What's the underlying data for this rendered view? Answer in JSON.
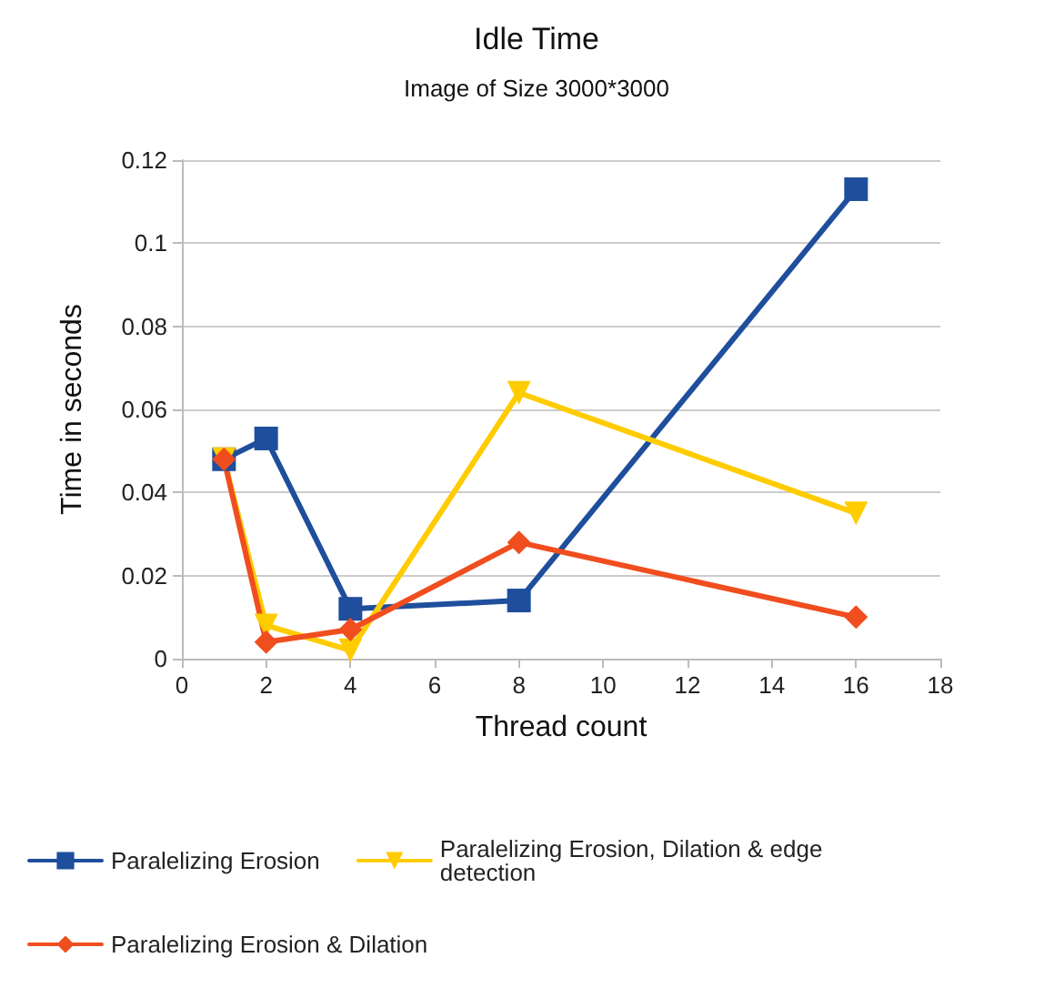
{
  "chart_data": {
    "type": "line",
    "title": "Idle Time",
    "subtitle": "Image of Size 3000*3000",
    "xlabel": "Thread count",
    "ylabel": "Time in seconds",
    "x": [
      1,
      2,
      4,
      8,
      16
    ],
    "series": [
      {
        "name": "Paralelizing Erosion",
        "color": "#1f4e9c",
        "marker": "square",
        "values": [
          0.048,
          0.053,
          0.012,
          0.014,
          0.113
        ]
      },
      {
        "name": "Paralelizing Erosion, Dilation & edge detection",
        "color": "#ffcc00",
        "marker": "triangle",
        "values": [
          0.048,
          0.008,
          0.002,
          0.064,
          0.035
        ]
      },
      {
        "name": "Paralelizing Erosion & Dilation",
        "color": "#f04e1e",
        "marker": "diamond",
        "values": [
          0.048,
          0.004,
          0.007,
          0.028,
          0.01
        ]
      }
    ],
    "xlim": [
      0,
      18
    ],
    "xticks": [
      0,
      2,
      4,
      6,
      8,
      10,
      12,
      14,
      16,
      18
    ],
    "ylim": [
      0,
      0.12
    ],
    "yticks": [
      0,
      0.02,
      0.04,
      0.06,
      0.08,
      0.1,
      0.12
    ],
    "grid": "y",
    "legend": "bottom"
  }
}
